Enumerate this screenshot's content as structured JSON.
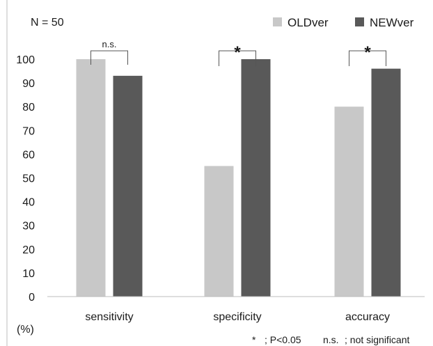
{
  "chart_data": {
    "type": "bar",
    "sample_label": "N = 50",
    "unit_label": "(%)",
    "categories": [
      "sensitivity",
      "specificity",
      "accuracy"
    ],
    "series": [
      {
        "name": "OLDver",
        "values": [
          100,
          55,
          80
        ],
        "color": "#c8c8c8"
      },
      {
        "name": "NEWver",
        "values": [
          93,
          100,
          96
        ],
        "color": "#595959"
      }
    ],
    "yticks": [
      0,
      10,
      20,
      30,
      40,
      50,
      60,
      70,
      80,
      90,
      100
    ],
    "ylim": [
      0,
      100
    ],
    "grid": false,
    "legend_position": "top-right",
    "significance": [
      "n.s.",
      "*",
      "*"
    ],
    "footnote": {
      "star_symbol": "*",
      "star_meaning": "; P<0.05",
      "ns_symbol": "n.s.",
      "ns_meaning": "; not significant"
    }
  }
}
